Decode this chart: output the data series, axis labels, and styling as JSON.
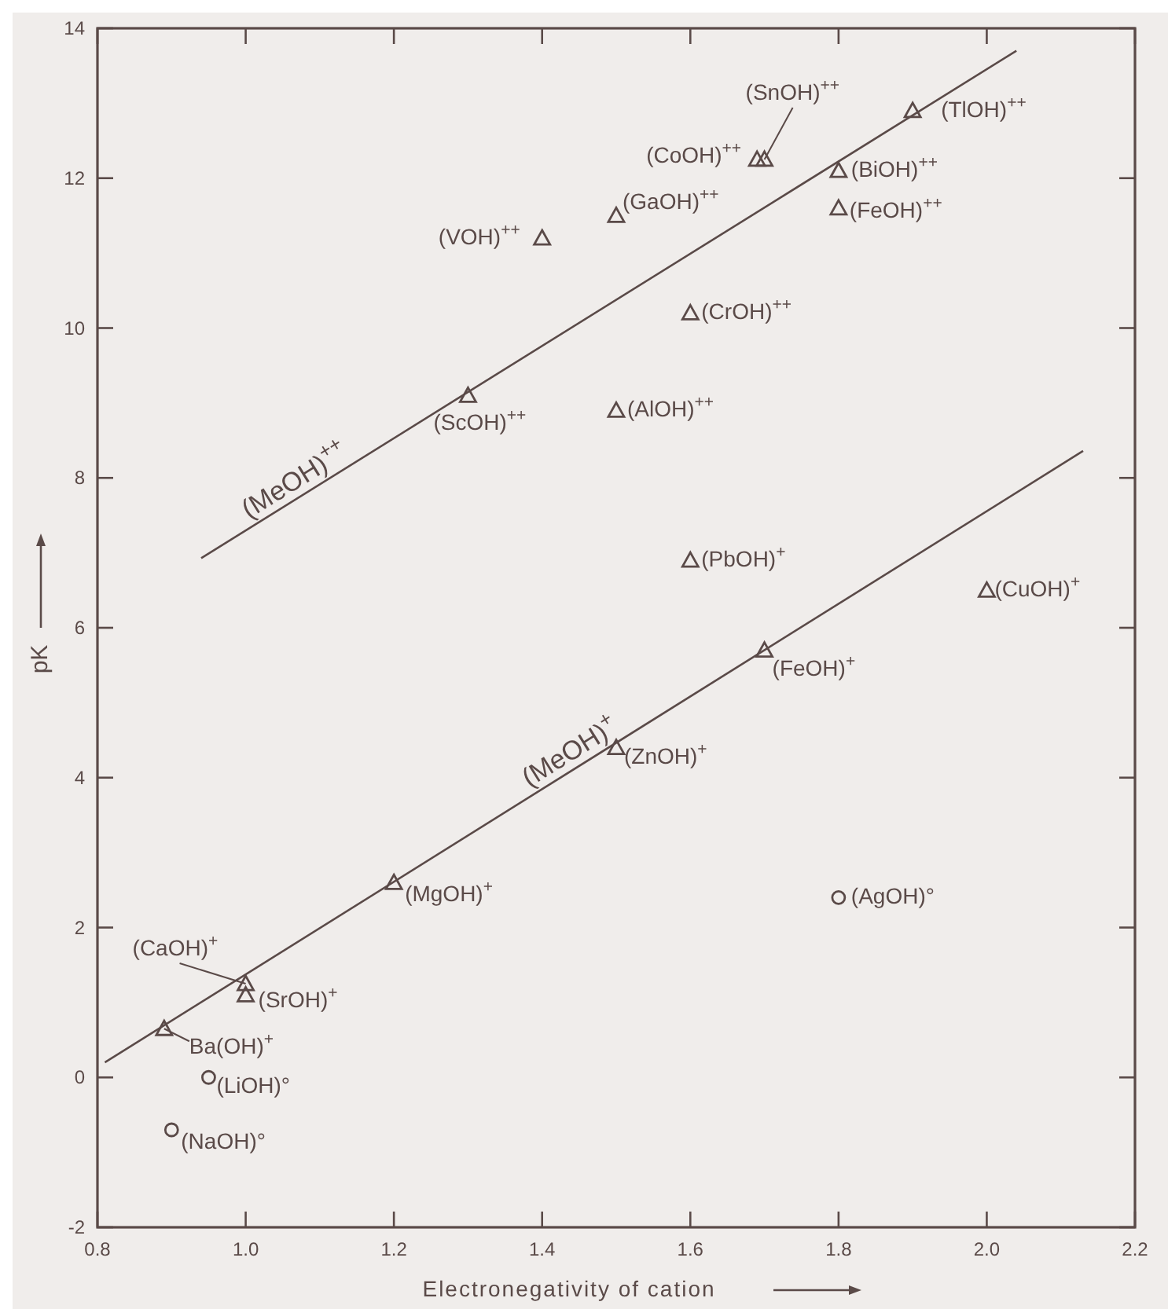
{
  "chart_data": {
    "type": "scatter",
    "xlabel": "Electronegativity of cation",
    "ylabel": "pK",
    "xlim": [
      0.8,
      2.2
    ],
    "ylim": [
      -2,
      14
    ],
    "xticks": [
      {
        "value": 0.8,
        "label": "0.8"
      },
      {
        "value": 1.0,
        "label": "1.0"
      },
      {
        "value": 1.2,
        "label": "1.2"
      },
      {
        "value": 1.4,
        "label": "1.4"
      },
      {
        "value": 1.6,
        "label": "1.6"
      },
      {
        "value": 1.8,
        "label": "1.8"
      },
      {
        "value": 2.0,
        "label": "2.0"
      },
      {
        "value": 2.2,
        "label": "2.2"
      }
    ],
    "yticks": [
      -2,
      0,
      2,
      4,
      6,
      8,
      10,
      12,
      14
    ],
    "grid": false,
    "series": [
      {
        "marker": "triangle",
        "color": "#5a4a48",
        "x": [
          1.9,
          1.7,
          1.69,
          1.8,
          1.8,
          1.5,
          1.4,
          1.6,
          1.3,
          1.5,
          1.6,
          2.0,
          1.7,
          1.5,
          1.2,
          1.0,
          1.0,
          0.89
        ],
        "values": [
          12.9,
          12.25,
          12.25,
          12.1,
          11.6,
          11.5,
          11.2,
          10.2,
          9.1,
          8.9,
          6.9,
          6.5,
          5.7,
          4.4,
          2.6,
          1.25,
          1.1,
          0.65
        ]
      },
      {
        "marker": "circle",
        "color": "#5a4a48",
        "x": [
          0.95,
          0.9,
          1.8
        ],
        "values": [
          0.0,
          -0.7,
          2.4
        ]
      },
      {
        "type": "line",
        "name": "(MeOH)$^{++}$",
        "color": "#5a4a48",
        "x": [
          0.94,
          2.04
        ],
        "values": [
          6.93,
          13.7
        ]
      },
      {
        "type": "line",
        "name": "(MeOH)$^{+}$",
        "color": "#5a4a48",
        "x": [
          0.81,
          2.13
        ],
        "values": [
          0.2,
          8.36
        ]
      }
    ],
    "annotations": [
      {
        "text": "(TlOH)$^{++}$",
        "x": 1.9,
        "y": 12.9
      },
      {
        "text": "(SnOH)$^{++}$",
        "x": 1.7,
        "y": 12.25
      },
      {
        "text": "(CoOH)$^{++}$",
        "x": 1.69,
        "y": 12.25
      },
      {
        "text": "(BiOH)$^{++}$",
        "x": 1.8,
        "y": 12.1
      },
      {
        "text": "(FeOH)$^{++}$",
        "x": 1.8,
        "y": 11.6
      },
      {
        "text": "(GaOH)$^{++}$",
        "x": 1.5,
        "y": 11.5
      },
      {
        "text": "(VOH)$^{++}$",
        "x": 1.4,
        "y": 11.2
      },
      {
        "text": "(CrOH)$^{++}$",
        "x": 1.6,
        "y": 10.2
      },
      {
        "text": "(ScOH)$^{++}$",
        "x": 1.3,
        "y": 9.1
      },
      {
        "text": "(AlOH)$^{++}$",
        "x": 1.5,
        "y": 8.9
      },
      {
        "text": "(PbOH)$^{+}$",
        "x": 1.6,
        "y": 6.9
      },
      {
        "text": "(CuOH)$^{+}$",
        "x": 2.0,
        "y": 6.5
      },
      {
        "text": "(FeOH)$^{+}$",
        "x": 1.7,
        "y": 5.7
      },
      {
        "text": "(ZnOH)$^{+}$",
        "x": 1.5,
        "y": 4.4
      },
      {
        "text": "(MgOH)$^{+}$",
        "x": 1.2,
        "y": 2.6
      },
      {
        "text": "(CaOH)$^{+}$",
        "x": 1.0,
        "y": 1.25
      },
      {
        "text": "(SrOH)$^{+}$",
        "x": 1.0,
        "y": 1.1
      },
      {
        "text": "Ba(OH)$^{+}$",
        "x": 0.89,
        "y": 0.65
      },
      {
        "text": "(LiOH)°",
        "x": 0.95,
        "y": 0.0
      },
      {
        "text": "(NaOH)°",
        "x": 0.9,
        "y": -0.7
      },
      {
        "text": "(AgOH)°",
        "x": 1.8,
        "y": 2.4
      }
    ]
  }
}
